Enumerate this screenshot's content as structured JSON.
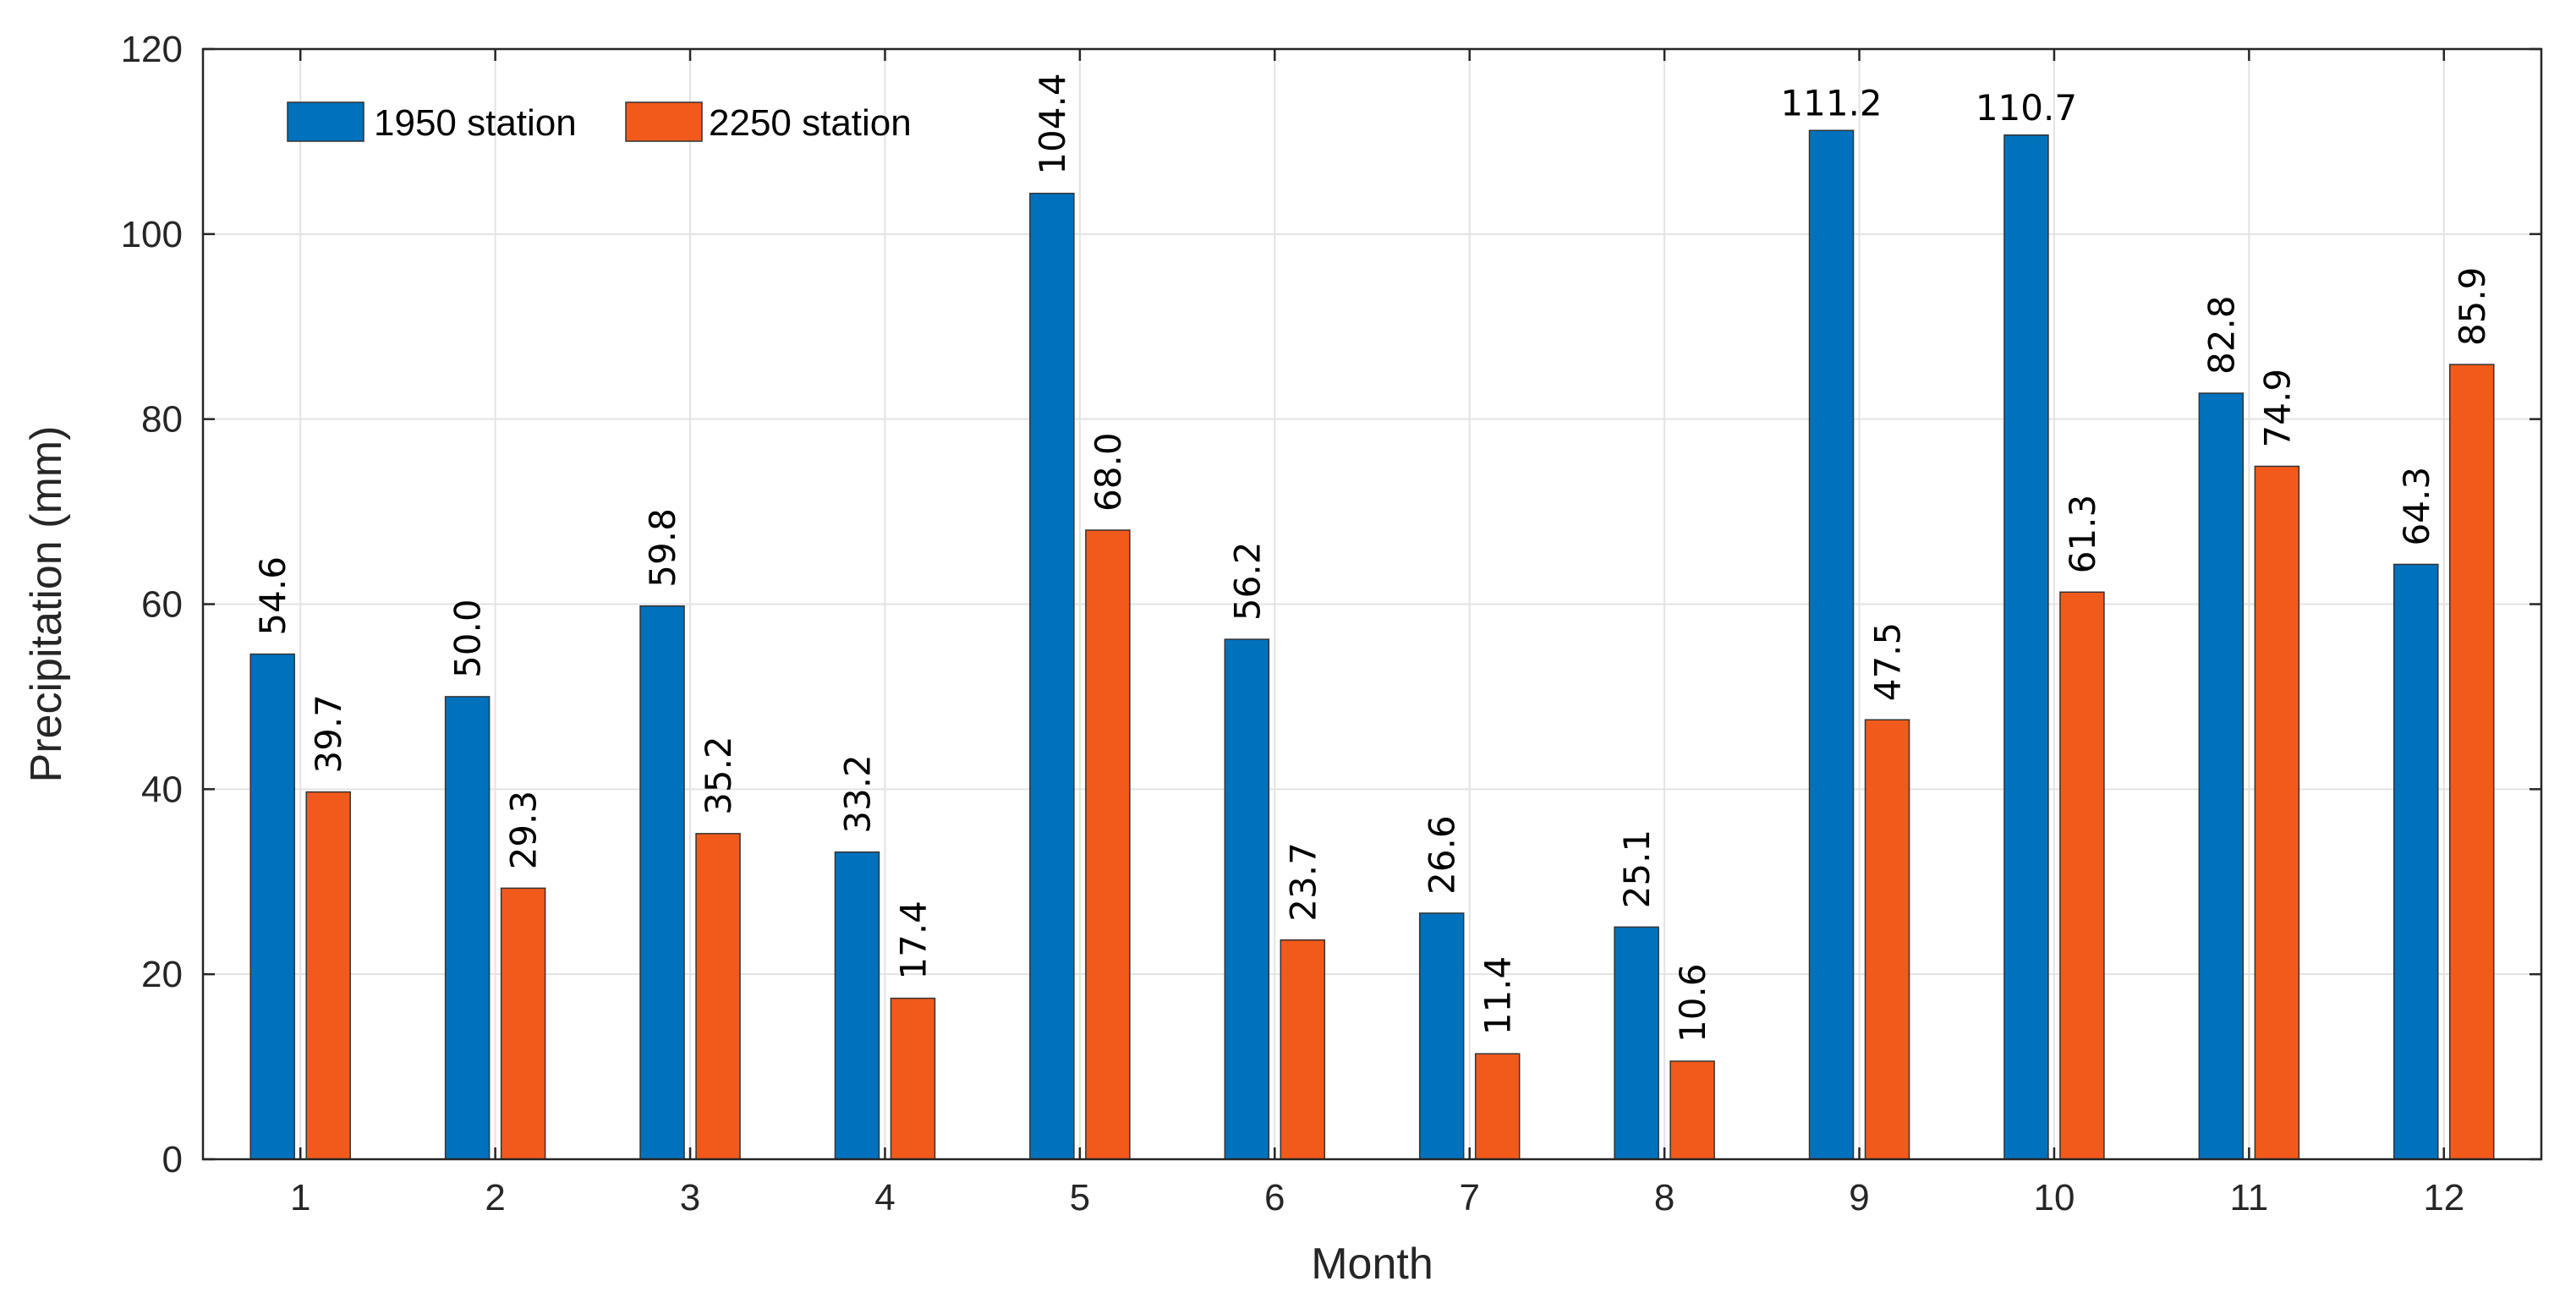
{
  "chart_data": {
    "type": "bar",
    "title": "",
    "xlabel": "Month",
    "ylabel": "Precipitation (mm)",
    "ylim": [
      0,
      120
    ],
    "yticks": [
      0,
      20,
      40,
      60,
      80,
      100,
      120
    ],
    "categories": [
      "1",
      "2",
      "3",
      "4",
      "5",
      "6",
      "7",
      "8",
      "9",
      "10",
      "11",
      "12"
    ],
    "grid": true,
    "legend_position": "top-left",
    "series": [
      {
        "name": "1950 station",
        "color": "#0072BD",
        "values": [
          54.6,
          50.0,
          59.8,
          33.2,
          104.4,
          56.2,
          26.6,
          25.1,
          111.2,
          110.7,
          82.8,
          64.3
        ],
        "labels": [
          "54.6",
          "50.0",
          "59.8",
          "33.2",
          "104.4",
          "56.2",
          "26.6",
          "25.1",
          "111.2",
          "110.7",
          "82.8",
          "64.3"
        ],
        "label_rotated": [
          true,
          true,
          true,
          true,
          true,
          true,
          true,
          true,
          false,
          false,
          true,
          true
        ]
      },
      {
        "name": "2250 station",
        "color": "#F25A1B",
        "values": [
          39.7,
          29.3,
          35.2,
          17.4,
          68.0,
          23.7,
          11.4,
          10.6,
          47.5,
          61.3,
          74.9,
          85.9
        ],
        "labels": [
          "39.7",
          "29.3",
          "35.2",
          "17.4",
          "68.0",
          "23.7",
          "11.4",
          "10.6",
          "47.5",
          "61.3",
          "74.9",
          "85.9"
        ],
        "label_rotated": [
          true,
          true,
          true,
          true,
          true,
          true,
          true,
          true,
          true,
          true,
          true,
          true
        ]
      }
    ]
  }
}
